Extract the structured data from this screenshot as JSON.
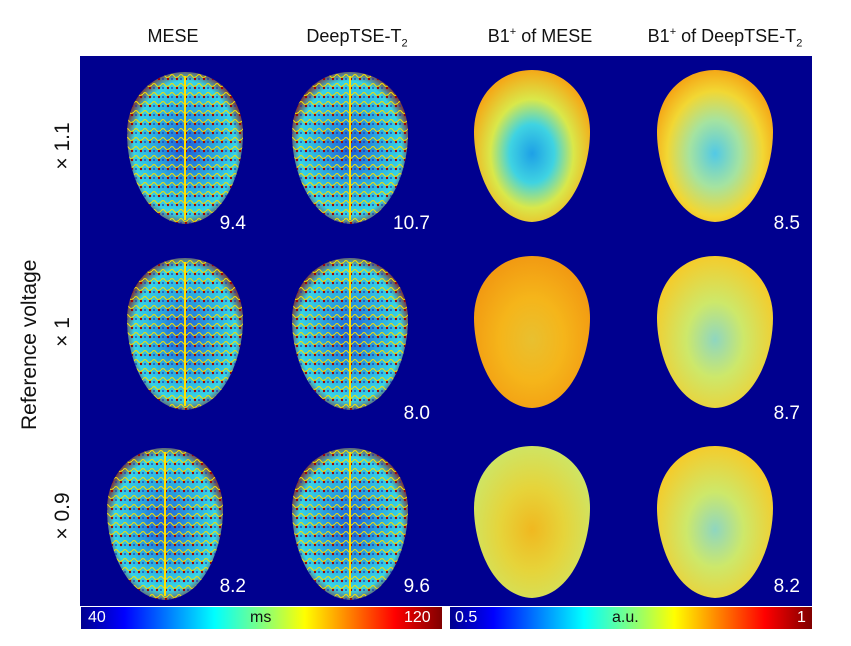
{
  "columns": [
    {
      "main": "MESE",
      "sup": "",
      "tail": "",
      "sub": ""
    },
    {
      "main": "DeepTSE-T",
      "sup": "",
      "tail": "",
      "sub": "2"
    },
    {
      "main": "B1",
      "sup": "+",
      "tail": " of MESE",
      "sub": ""
    },
    {
      "main": "B1",
      "sup": "+",
      "tail": " of DeepTSE-T",
      "sub": "2"
    }
  ],
  "y_axis_label": "Reference voltage",
  "rows": [
    {
      "label": "× 1.1",
      "values": [
        "9.4",
        "10.7",
        "",
        "8.5"
      ]
    },
    {
      "label": "× 1",
      "values": [
        "",
        "8.0",
        "",
        "8.7"
      ]
    },
    {
      "label": "× 0.9",
      "values": [
        "8.2",
        "9.6",
        "",
        "8.2"
      ]
    }
  ],
  "colorbars": [
    {
      "min": "40",
      "unit": "ms",
      "max": "120"
    },
    {
      "min": "0.5",
      "unit": "a.u.",
      "max": "1"
    }
  ],
  "colors": {
    "background": "#00008f",
    "t2_base": "#2aa6e0",
    "b1_base": "#f2b21a"
  }
}
